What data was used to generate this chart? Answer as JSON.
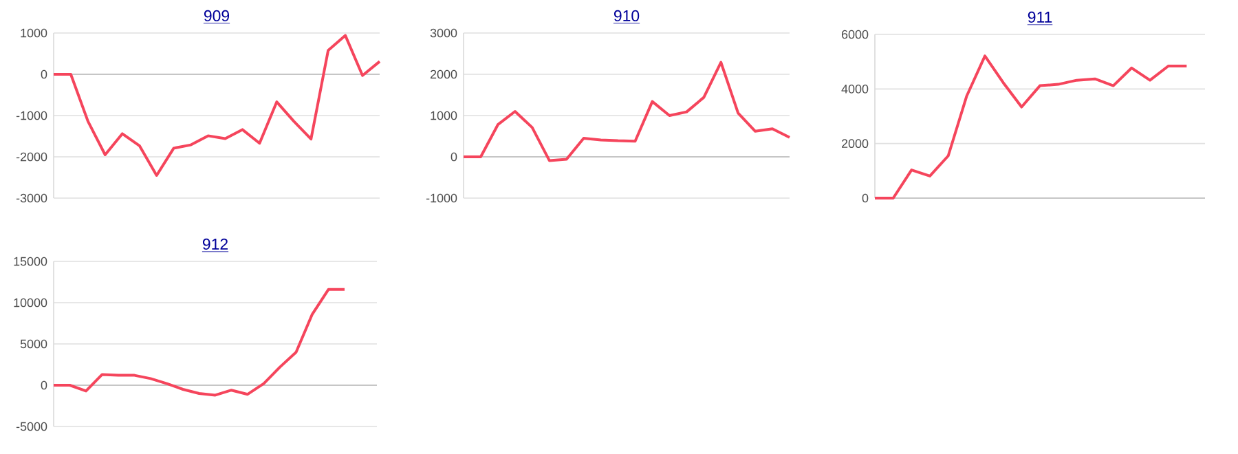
{
  "chart_data": [
    {
      "type": "line",
      "title": "909",
      "categories": [
        null,
        null,
        null,
        null,
        null,
        null,
        null,
        null,
        null,
        null,
        null,
        null,
        null,
        null,
        null,
        null,
        null,
        null,
        null,
        null
      ],
      "values": [
        0,
        0,
        -1140,
        -1950,
        -1440,
        -1730,
        -2450,
        -1790,
        -1710,
        -1490,
        -1560,
        -1340,
        -1670,
        -670,
        -1140,
        -1570,
        580,
        940,
        -30,
        310
      ],
      "color": "#f5455c",
      "ylim": [
        -3000,
        1000
      ],
      "yticks": [
        -3000,
        -2000,
        -1000,
        0,
        1000
      ],
      "grid": "y",
      "ref_lines": [
        {
          "axis": "y",
          "value": 0,
          "color": "#bbbbbb"
        }
      ]
    },
    {
      "type": "line",
      "title": "910",
      "categories": [
        null,
        null,
        null,
        null,
        null,
        null,
        null,
        null,
        null,
        null,
        null,
        null,
        null,
        null,
        null,
        null,
        null,
        null,
        null,
        null
      ],
      "values": [
        0,
        0,
        780,
        1100,
        710,
        -90,
        -60,
        450,
        410,
        390,
        380,
        1340,
        1000,
        1090,
        1440,
        2290,
        1060,
        620,
        680,
        470
      ],
      "color": "#f5455c",
      "ylim": [
        -1000,
        3000
      ],
      "yticks": [
        -1000,
        0,
        1000,
        2000,
        3000
      ],
      "grid": "y",
      "ref_lines": [
        {
          "axis": "y",
          "value": 0,
          "color": "#bbbbbb"
        }
      ]
    },
    {
      "type": "line",
      "title": "911",
      "categories": [
        null,
        null,
        null,
        null,
        null,
        null,
        null,
        null,
        null,
        null,
        null,
        null,
        null,
        null,
        null,
        null,
        null,
        null,
        null
      ],
      "values": [
        0,
        0,
        1030,
        810,
        1550,
        3730,
        5210,
        4230,
        3340,
        4120,
        4170,
        4320,
        4370,
        4120,
        4770,
        4320,
        4840,
        4840,
        null
      ],
      "color": "#f5455c",
      "ylim": [
        0,
        6000
      ],
      "yticks": [
        0,
        2000,
        4000,
        6000
      ],
      "grid": "y",
      "ref_lines": [
        {
          "axis": "y",
          "value": 0,
          "color": "#bbbbbb"
        }
      ]
    },
    {
      "type": "line",
      "title": "912",
      "categories": [
        null,
        null,
        null,
        null,
        null,
        null,
        null,
        null,
        null,
        null,
        null,
        null,
        null,
        null,
        null,
        null,
        null,
        null,
        null,
        null,
        null
      ],
      "values": [
        0,
        0,
        -700,
        1300,
        1200,
        1200,
        800,
        200,
        -500,
        -1000,
        -1200,
        -600,
        -1100,
        200,
        2200,
        4000,
        8600,
        11600,
        11600,
        null,
        null
      ],
      "color": "#f5455c",
      "ylim": [
        -5000,
        15000
      ],
      "yticks": [
        -5000,
        0,
        5000,
        10000,
        15000
      ],
      "grid": "y",
      "ref_lines": [
        {
          "axis": "y",
          "value": 0,
          "color": "#bbbbbb"
        }
      ]
    }
  ]
}
